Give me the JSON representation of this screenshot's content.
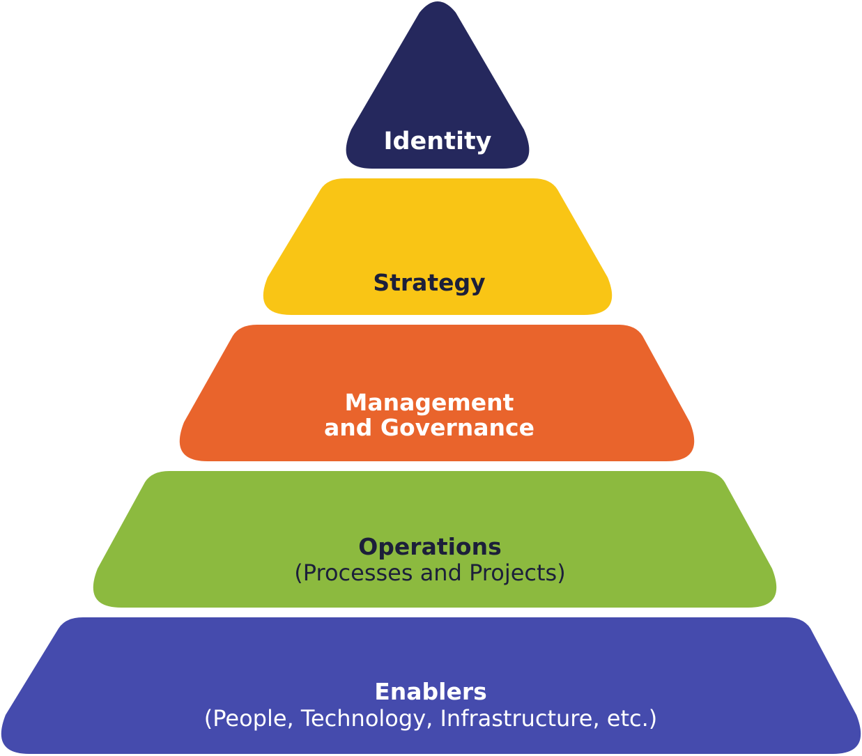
{
  "pyramid": {
    "tiers": [
      {
        "id": "identity",
        "lines": [
          "Identity"
        ],
        "sublabel": "",
        "fill": "#25285d",
        "text_color": "#ffffff"
      },
      {
        "id": "strategy",
        "lines": [
          "Strategy"
        ],
        "sublabel": "",
        "fill": "#f9c515",
        "text_color": "#1c1f3a"
      },
      {
        "id": "management-governance",
        "lines": [
          "Management",
          "and Governance"
        ],
        "sublabel": "",
        "fill": "#e9642c",
        "text_color": "#ffffff"
      },
      {
        "id": "operations",
        "lines": [
          "Operations"
        ],
        "sublabel": "(Processes and Projects)",
        "fill": "#8cba3f",
        "text_color": "#1c1f3a"
      },
      {
        "id": "enablers",
        "lines": [
          "Enablers"
        ],
        "sublabel": "(People, Technology, Infrastructure, etc.)",
        "fill": "#454bad",
        "text_color": "#ffffff"
      }
    ]
  }
}
